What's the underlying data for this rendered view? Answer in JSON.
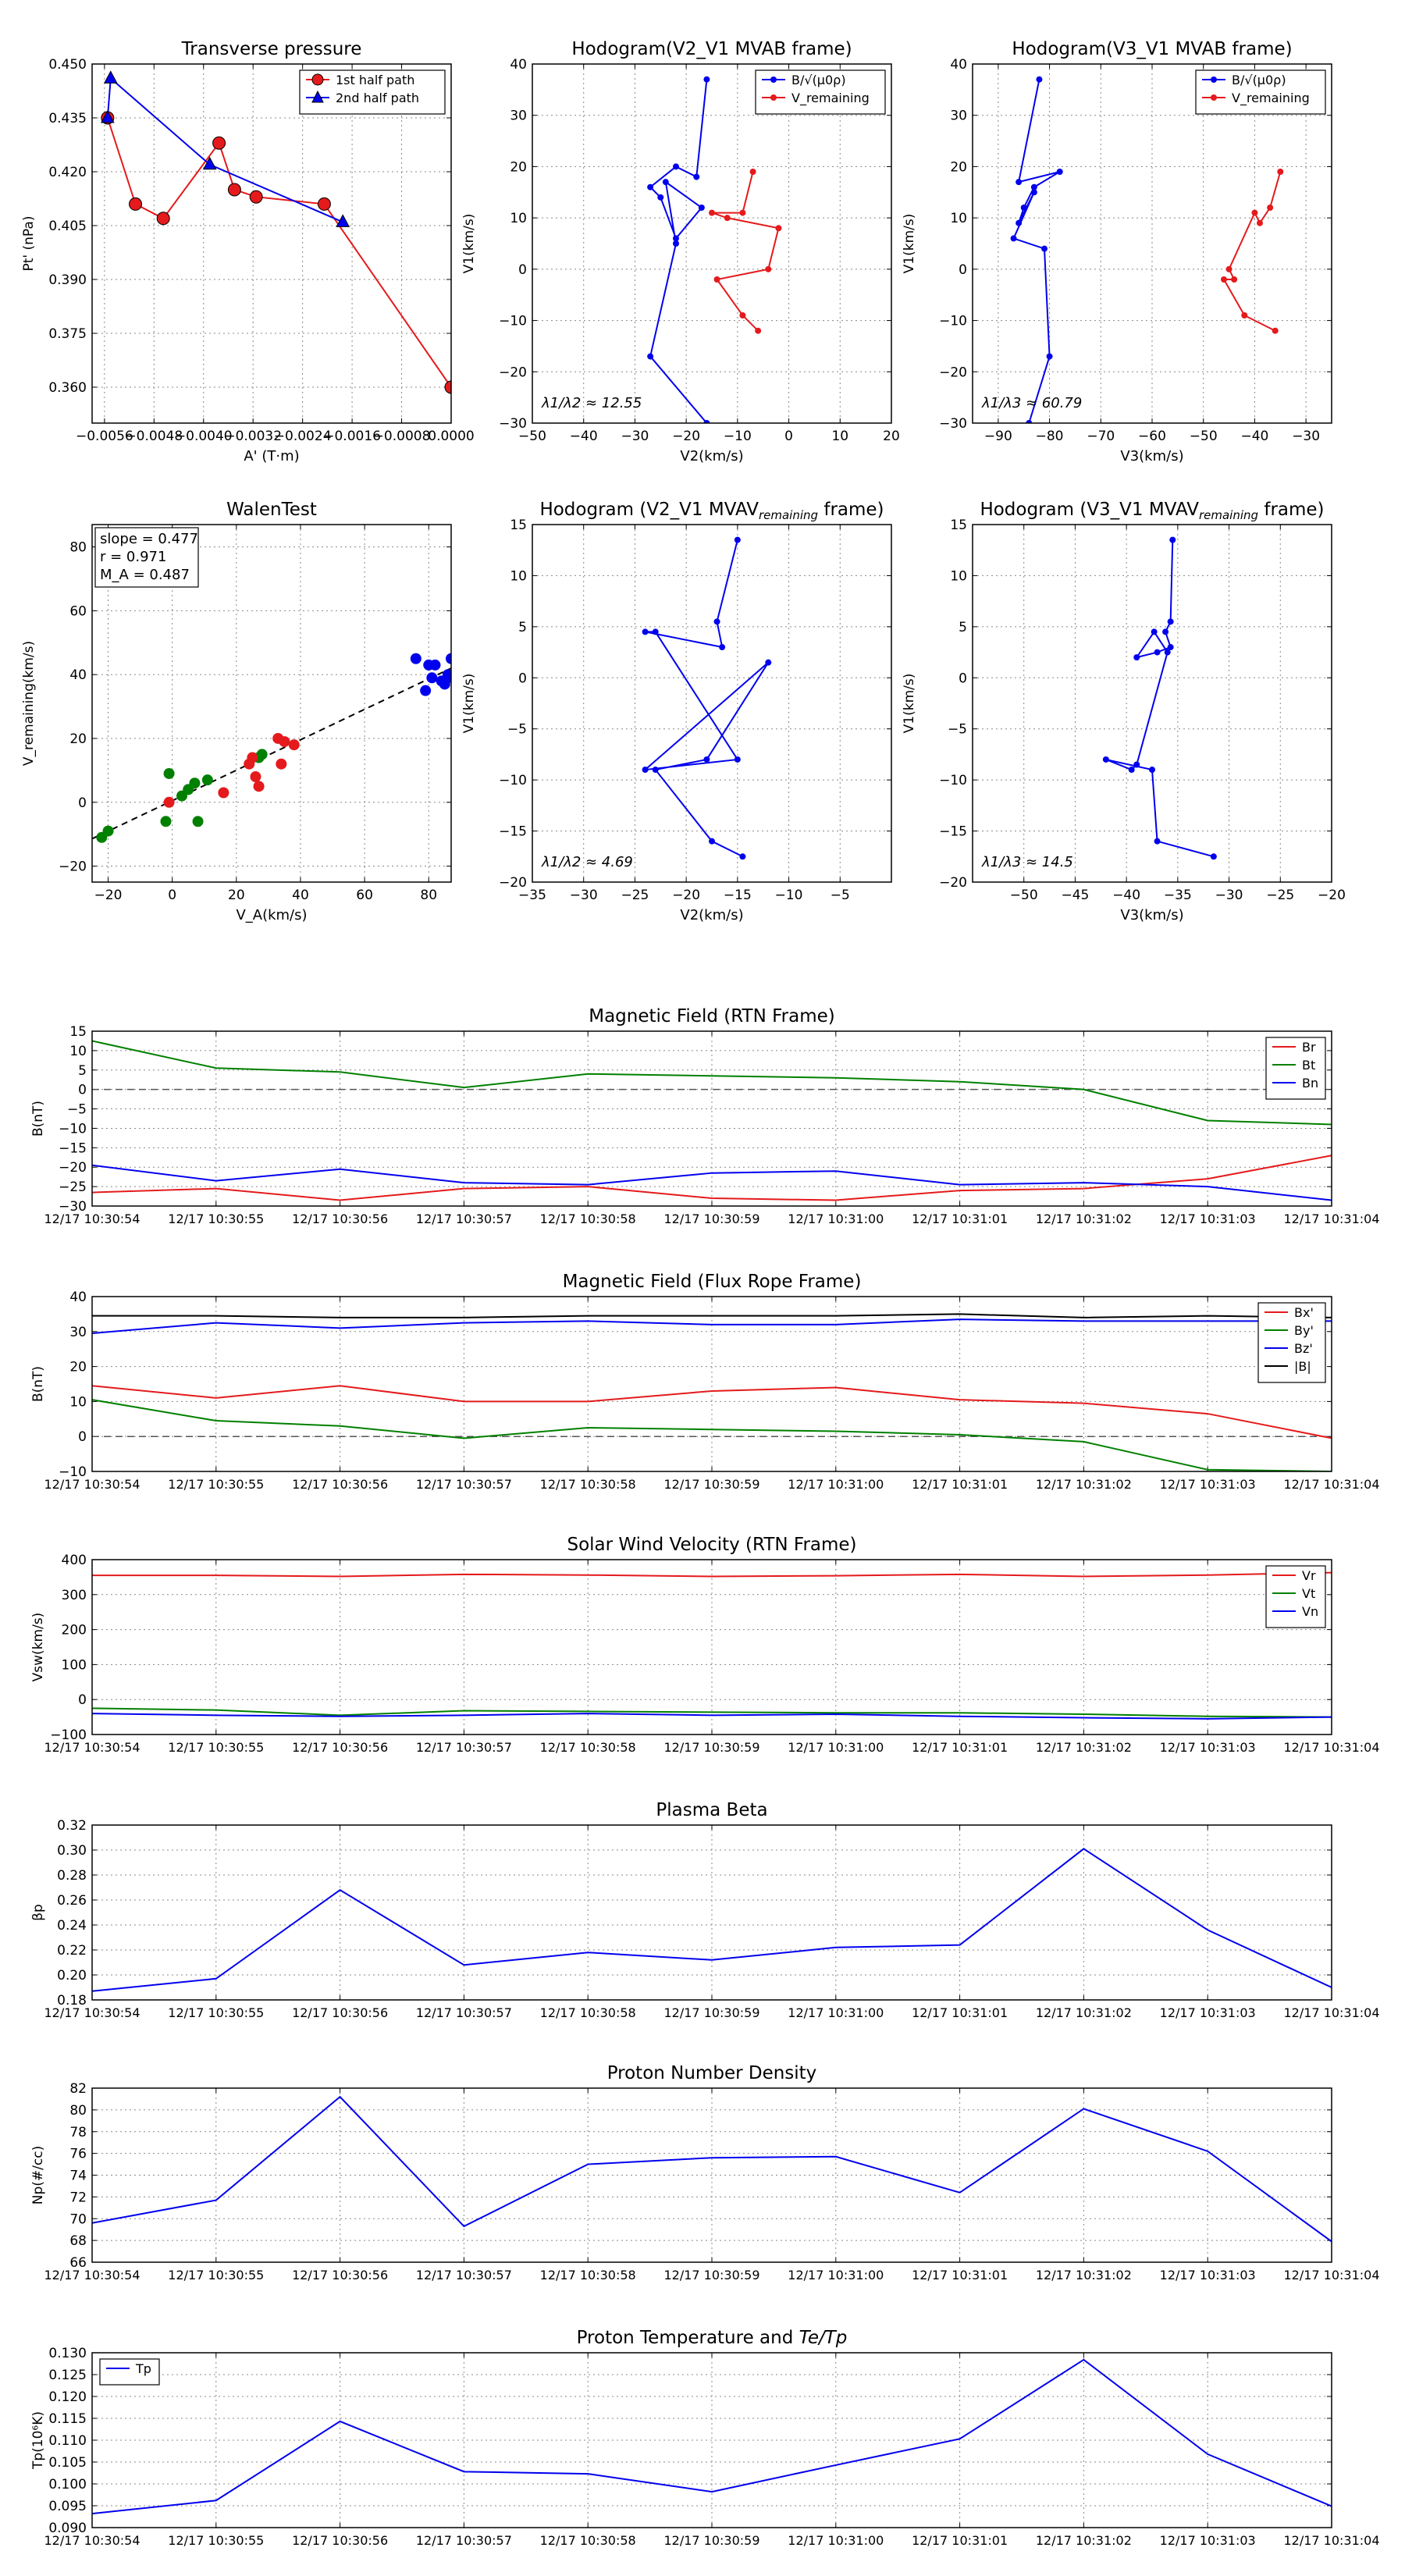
{
  "chart_data": [
    {
      "id": "pt",
      "type": "line",
      "title": "Transverse pressure",
      "xlabel": "A' (T·m)",
      "ylabel": "Pt' (nPa)",
      "xlim": [
        -0.0058,
        0.0
      ],
      "ylim": [
        0.35,
        0.45
      ],
      "xticks": [
        -0.0056,
        -0.0048,
        -0.004,
        -0.0032,
        -0.0024,
        -0.0016,
        -0.0008,
        0.0
      ],
      "xticklabels": [
        "−0.0056",
        "−0.0048",
        "−0.0040",
        "−0.0032",
        "−0.0024",
        "−0.0016",
        "−0.0008",
        "0.0000"
      ],
      "yticks": [
        0.36,
        0.375,
        0.39,
        0.405,
        0.42,
        0.435,
        0.45
      ],
      "yticklabels": [
        "0.360",
        "0.375",
        "0.390",
        "0.405",
        "0.420",
        "0.435",
        "0.450"
      ],
      "legend": "top-right",
      "series": [
        {
          "name": "1st half path",
          "color": "#e41a1c",
          "marker": "circle",
          "x": [
            -0.00555,
            -0.0051,
            -0.00465,
            -0.00375,
            -0.0035,
            -0.00315,
            -0.00205,
            0.0
          ],
          "y": [
            0.435,
            0.411,
            0.407,
            0.428,
            0.415,
            0.413,
            0.411,
            0.36
          ]
        },
        {
          "name": "2nd half path",
          "color": "#0000ee",
          "marker": "triangle",
          "x": [
            -0.00555,
            -0.0055,
            -0.0039,
            -0.00175
          ],
          "y": [
            0.435,
            0.446,
            0.422,
            0.406
          ]
        }
      ]
    },
    {
      "id": "hodo_v2",
      "type": "line",
      "title": "Hodogram(V2_V1 MVAB frame)",
      "xlabel": "V2(km/s)",
      "ylabel": "V1(km/s)",
      "xlim": [
        -50,
        20
      ],
      "ylim": [
        -30,
        40
      ],
      "xticks": [
        -50,
        -40,
        -30,
        -20,
        -10,
        0,
        10,
        20
      ],
      "xticklabels": [
        "−50",
        "−40",
        "−30",
        "−20",
        "−10",
        "0",
        "10",
        "20"
      ],
      "yticks": [
        -30,
        -20,
        -10,
        0,
        10,
        20,
        30,
        40
      ],
      "yticklabels": [
        "−30",
        "−20",
        "−10",
        "0",
        "10",
        "20",
        "30",
        "40"
      ],
      "legend": "top-right",
      "annotation": "λ1/λ2 ≈ 12.55",
      "series": [
        {
          "name": "B/√(μ0ρ)",
          "color": "#0000ee",
          "x": [
            -16,
            -18,
            -22,
            -27,
            -25,
            -22,
            -17,
            -24,
            -22,
            -27,
            -16
          ],
          "y": [
            37,
            18,
            20,
            16,
            14,
            6,
            12,
            17,
            5,
            -17,
            -30
          ]
        },
        {
          "name": "V_remaining",
          "color": "#e41a1c",
          "x": [
            -7,
            -9,
            -15,
            -12,
            -2,
            -4,
            -14,
            -9,
            -6
          ],
          "y": [
            19,
            11,
            11,
            10,
            8,
            0,
            -2,
            -9,
            -12
          ]
        }
      ]
    },
    {
      "id": "hodo_v3",
      "type": "line",
      "title": "Hodogram(V3_V1 MVAB frame)",
      "xlabel": "V3(km/s)",
      "ylabel": "V1(km/s)",
      "xlim": [
        -95,
        -25
      ],
      "ylim": [
        -30,
        40
      ],
      "xticks": [
        -90,
        -80,
        -70,
        -60,
        -50,
        -40,
        -30
      ],
      "xticklabels": [
        "−90",
        "−80",
        "−70",
        "−60",
        "−50",
        "−40",
        "−30"
      ],
      "yticks": [
        -30,
        -20,
        -10,
        0,
        10,
        20,
        30,
        40
      ],
      "yticklabels": [
        "−30",
        "−20",
        "−10",
        "0",
        "10",
        "20",
        "30",
        "40"
      ],
      "legend": "top-right",
      "annotation": "λ1/λ3 ≈ 60.79",
      "series": [
        {
          "name": "B/√(μ0ρ)",
          "color": "#0000ee",
          "x": [
            -82,
            -86,
            -78,
            -83,
            -85,
            -86,
            -83,
            -87,
            -81,
            -80,
            -84
          ],
          "y": [
            37,
            17,
            19,
            16,
            12,
            9,
            15,
            6,
            4,
            -17,
            -30
          ]
        },
        {
          "name": "V_remaining",
          "color": "#e41a1c",
          "x": [
            -35,
            -37,
            -39,
            -40,
            -45,
            -44,
            -46,
            -42,
            -36
          ],
          "y": [
            19,
            12,
            9,
            11,
            0,
            -2,
            -2,
            -9,
            -12
          ]
        }
      ]
    },
    {
      "id": "walen",
      "type": "scatter",
      "title": "WalenTest",
      "xlabel": "V_A(km/s)",
      "ylabel": "V_remaining(km/s)",
      "xlim": [
        -25,
        87
      ],
      "ylim": [
        -25,
        87
      ],
      "xticks": [
        -20,
        0,
        20,
        40,
        60,
        80
      ],
      "xticklabels": [
        "−20",
        "0",
        "20",
        "40",
        "60",
        "80"
      ],
      "yticks": [
        -20,
        0,
        20,
        40,
        60,
        80
      ],
      "yticklabels": [
        "−20",
        "0",
        "20",
        "40",
        "60",
        "80"
      ],
      "stats": [
        "slope = 0.477",
        "r = 0.971",
        "M_A = 0.487"
      ],
      "fit_line": {
        "slope": 0.477,
        "intercept": 0.5
      },
      "series": [
        {
          "name": "green",
          "color": "#008000",
          "x": [
            -22,
            -20,
            -2,
            -1,
            3,
            5,
            7,
            8,
            11,
            27,
            28
          ],
          "y": [
            -11,
            -9,
            -6,
            9,
            2,
            4,
            6,
            -6,
            7,
            14,
            15
          ]
        },
        {
          "name": "red",
          "color": "#e41a1c",
          "x": [
            -1,
            16,
            24,
            25,
            26,
            27,
            33,
            34,
            35,
            38
          ],
          "y": [
            0,
            3,
            12,
            14,
            8,
            5,
            20,
            12,
            19,
            18
          ]
        },
        {
          "name": "blue",
          "color": "#0000ee",
          "x": [
            76,
            79,
            80,
            81,
            82,
            84,
            85,
            86,
            87,
            86
          ],
          "y": [
            45,
            35,
            43,
            39,
            43,
            38,
            37,
            39,
            45,
            40
          ]
        }
      ]
    },
    {
      "id": "hodo_v2_rem",
      "type": "line",
      "title": "Hodogram (V2_V1 MVAV",
      "title_sub": "remaining",
      "title_end": " frame)",
      "xlabel": "V2(km/s)",
      "ylabel": "V1(km/s)",
      "xlim": [
        -35,
        0
      ],
      "ylim": [
        -20,
        15
      ],
      "xticks": [
        -35,
        -30,
        -25,
        -20,
        -15,
        -10,
        -5
      ],
      "xticklabels": [
        "−35",
        "−30",
        "−25",
        "−20",
        "−15",
        "−10",
        "−5"
      ],
      "yticks": [
        -20,
        -15,
        -10,
        -5,
        0,
        5,
        10,
        15
      ],
      "yticklabels": [
        "−20",
        "−15",
        "−10",
        "−5",
        "0",
        "5",
        "10",
        "15"
      ],
      "annotation": "λ1/λ2 ≈ 4.69",
      "series": [
        {
          "name": "path",
          "color": "#0000ee",
          "x": [
            -15,
            -17,
            -16.5,
            -24,
            -23,
            -15,
            -24,
            -12,
            -18,
            -23,
            -17.5,
            -14.5
          ],
          "y": [
            13.5,
            5.5,
            3,
            4.5,
            4.5,
            -8,
            -9,
            1.5,
            -8,
            -9,
            -16,
            -17.5
          ]
        }
      ]
    },
    {
      "id": "hodo_v3_rem",
      "type": "line",
      "title": "Hodogram (V3_V1 MVAV",
      "title_sub": "remaining",
      "title_end": " frame)",
      "xlabel": "V3(km/s)",
      "ylabel": "V1(km/s)",
      "xlim": [
        -55,
        -20
      ],
      "ylim": [
        -20,
        15
      ],
      "xticks": [
        -50,
        -45,
        -40,
        -35,
        -30,
        -25,
        -20
      ],
      "xticklabels": [
        "−50",
        "−45",
        "−40",
        "−35",
        "−30",
        "−25",
        "−20"
      ],
      "yticks": [
        -20,
        -15,
        -10,
        -5,
        0,
        5,
        10,
        15
      ],
      "yticklabels": [
        "−20",
        "−15",
        "−10",
        "−5",
        "0",
        "5",
        "10",
        "15"
      ],
      "annotation": "λ1/λ3 ≈ 14.5",
      "series": [
        {
          "name": "path",
          "color": "#0000ee",
          "x": [
            -35.5,
            -35.7,
            -36.2,
            -35.7,
            -37,
            -39,
            -37.3,
            -36,
            -39,
            -39.5,
            -42,
            -37.5,
            -37,
            -31.5
          ],
          "y": [
            13.5,
            5.5,
            4.5,
            3,
            2.5,
            2,
            4.5,
            2.5,
            -8.5,
            -9,
            -8,
            -9,
            -16,
            -17.5
          ]
        }
      ]
    },
    {
      "id": "mag_rtn",
      "type": "line",
      "title": "Magnetic Field (RTN Frame)",
      "ylabel": "B(nT)",
      "ylim": [
        -30,
        15
      ],
      "yticks": [
        -30,
        -25,
        -20,
        -15,
        -10,
        -5,
        0,
        5,
        10,
        15
      ],
      "yticklabels": [
        "−30",
        "−25",
        "−20",
        "−15",
        "−10",
        "−5",
        "0",
        "5",
        "10",
        "15"
      ],
      "zero_line": true,
      "legend": "top-right",
      "categories": [
        "12/17 10:30:54",
        "12/17 10:30:55",
        "12/17 10:30:56",
        "12/17 10:30:57",
        "12/17 10:30:58",
        "12/17 10:30:59",
        "12/17 10:31:00",
        "12/17 10:31:01",
        "12/17 10:31:02",
        "12/17 10:31:03",
        "12/17 10:31:04"
      ],
      "series": [
        {
          "name": "Br",
          "color": "#e41a1c",
          "values": [
            -26.5,
            -25.5,
            -28.5,
            -25.5,
            -25,
            -28,
            -28.5,
            -26,
            -25.5,
            -23,
            -17
          ]
        },
        {
          "name": "Bt",
          "color": "#008000",
          "values": [
            12.5,
            5.5,
            4.5,
            0.5,
            4,
            3.5,
            3,
            2,
            0,
            -8,
            -9
          ]
        },
        {
          "name": "Bn",
          "color": "#0000ee",
          "values": [
            -19.5,
            -23.5,
            -20.5,
            -24,
            -24.5,
            -21.5,
            -21,
            -24.5,
            -24,
            -25,
            -28.5
          ]
        }
      ]
    },
    {
      "id": "mag_fr",
      "type": "line",
      "title": "Magnetic Field (Flux Rope Frame)",
      "ylabel": "B(nT)",
      "ylim": [
        -10,
        40
      ],
      "yticks": [
        -10,
        0,
        10,
        20,
        30,
        40
      ],
      "yticklabels": [
        "−10",
        "0",
        "10",
        "20",
        "30",
        "40"
      ],
      "zero_line": true,
      "legend": "top-right",
      "categories": [
        "12/17 10:30:54",
        "12/17 10:30:55",
        "12/17 10:30:56",
        "12/17 10:30:57",
        "12/17 10:30:58",
        "12/17 10:30:59",
        "12/17 10:31:00",
        "12/17 10:31:01",
        "12/17 10:31:02",
        "12/17 10:31:03",
        "12/17 10:31:04"
      ],
      "series": [
        {
          "name": "Bx'",
          "color": "#e41a1c",
          "values": [
            14.5,
            11,
            14.5,
            10,
            10,
            13,
            14,
            10.5,
            9.5,
            6.5,
            -0.5
          ]
        },
        {
          "name": "By'",
          "color": "#008000",
          "values": [
            10.5,
            4.5,
            3,
            -0.5,
            2.5,
            2,
            1.5,
            0.5,
            -1.5,
            -9.5,
            -10
          ]
        },
        {
          "name": "Bz'",
          "color": "#0000ee",
          "values": [
            29.5,
            32.5,
            31,
            32.5,
            33,
            32,
            32,
            33.5,
            33,
            33,
            33
          ]
        },
        {
          "name": "|B|",
          "color": "#000000",
          "values": [
            34.5,
            34.5,
            34,
            34,
            34.5,
            34.5,
            34.5,
            35,
            34,
            34.5,
            34
          ]
        }
      ]
    },
    {
      "id": "vsw",
      "type": "line",
      "title": "Solar Wind Velocity (RTN Frame)",
      "ylabel": "Vsw(km/s)",
      "ylim": [
        -100,
        400
      ],
      "yticks": [
        -100,
        0,
        100,
        200,
        300,
        400
      ],
      "yticklabels": [
        "−100",
        "0",
        "100",
        "200",
        "300",
        "400"
      ],
      "legend": "top-right",
      "categories": [
        "12/17 10:30:54",
        "12/17 10:30:55",
        "12/17 10:30:56",
        "12/17 10:30:57",
        "12/17 10:30:58",
        "12/17 10:30:59",
        "12/17 10:31:00",
        "12/17 10:31:01",
        "12/17 10:31:02",
        "12/17 10:31:03",
        "12/17 10:31:04"
      ],
      "series": [
        {
          "name": "Vr",
          "color": "#e41a1c",
          "values": [
            355,
            355,
            352,
            358,
            356,
            352,
            354,
            358,
            352,
            356,
            363
          ]
        },
        {
          "name": "Vt",
          "color": "#008000",
          "values": [
            -25,
            -30,
            -45,
            -32,
            -34,
            -36,
            -38,
            -38,
            -42,
            -48,
            -50
          ]
        },
        {
          "name": "Vn",
          "color": "#0000ee",
          "values": [
            -40,
            -45,
            -48,
            -45,
            -40,
            -45,
            -42,
            -48,
            -52,
            -55,
            -50
          ]
        }
      ]
    },
    {
      "id": "beta",
      "type": "line",
      "title": "Plasma Beta",
      "ylabel": "βp",
      "ylim": [
        0.18,
        0.32
      ],
      "yticks": [
        0.18,
        0.2,
        0.22,
        0.24,
        0.26,
        0.28,
        0.3,
        0.32
      ],
      "yticklabels": [
        "0.18",
        "0.20",
        "0.22",
        "0.24",
        "0.26",
        "0.28",
        "0.30",
        "0.32"
      ],
      "categories": [
        "12/17 10:30:54",
        "12/17 10:30:55",
        "12/17 10:30:56",
        "12/17 10:30:57",
        "12/17 10:30:58",
        "12/17 10:30:59",
        "12/17 10:31:00",
        "12/17 10:31:01",
        "12/17 10:31:02",
        "12/17 10:31:03",
        "12/17 10:31:04"
      ],
      "series": [
        {
          "name": "beta",
          "color": "#0000ee",
          "values": [
            0.187,
            0.197,
            0.268,
            0.208,
            0.218,
            0.212,
            0.222,
            0.224,
            0.301,
            0.236,
            0.19
          ]
        }
      ]
    },
    {
      "id": "np",
      "type": "line",
      "title": "Proton Number Density",
      "ylabel": "Np(#/cc)",
      "ylim": [
        66,
        82
      ],
      "yticks": [
        66,
        68,
        70,
        72,
        74,
        76,
        78,
        80,
        82
      ],
      "yticklabels": [
        "66",
        "68",
        "70",
        "72",
        "74",
        "76",
        "78",
        "80",
        "82"
      ],
      "categories": [
        "12/17 10:30:54",
        "12/17 10:30:55",
        "12/17 10:30:56",
        "12/17 10:30:57",
        "12/17 10:30:58",
        "12/17 10:30:59",
        "12/17 10:31:00",
        "12/17 10:31:01",
        "12/17 10:31:02",
        "12/17 10:31:03",
        "12/17 10:31:04"
      ],
      "series": [
        {
          "name": "Np",
          "color": "#0000ee",
          "values": [
            69.6,
            71.7,
            81.2,
            69.3,
            75.0,
            75.6,
            75.7,
            72.4,
            80.1,
            76.2,
            67.9
          ]
        }
      ]
    },
    {
      "id": "tp",
      "type": "line",
      "title": "Proton Temperature and ",
      "title_math": "Te/Tp",
      "ylabel": "Tp(10⁶K)",
      "ylim": [
        0.09,
        0.13
      ],
      "yticks": [
        0.09,
        0.095,
        0.1,
        0.105,
        0.11,
        0.115,
        0.12,
        0.125,
        0.13
      ],
      "yticklabels": [
        "0.090",
        "0.095",
        "0.100",
        "0.105",
        "0.110",
        "0.115",
        "0.120",
        "0.125",
        "0.130"
      ],
      "legend": "top-left",
      "categories": [
        "12/17 10:30:54",
        "12/17 10:30:55",
        "12/17 10:30:56",
        "12/17 10:30:57",
        "12/17 10:30:58",
        "12/17 10:30:59",
        "12/17 10:31:00",
        "12/17 10:31:01",
        "12/17 10:31:02",
        "12/17 10:31:03",
        "12/17 10:31:04"
      ],
      "series": [
        {
          "name": "Tp",
          "color": "#0000ee",
          "values": [
            0.0932,
            0.0962,
            0.1143,
            0.1028,
            0.1023,
            0.0982,
            0.1043,
            0.1103,
            0.1284,
            0.1068,
            0.0949
          ]
        }
      ]
    }
  ]
}
